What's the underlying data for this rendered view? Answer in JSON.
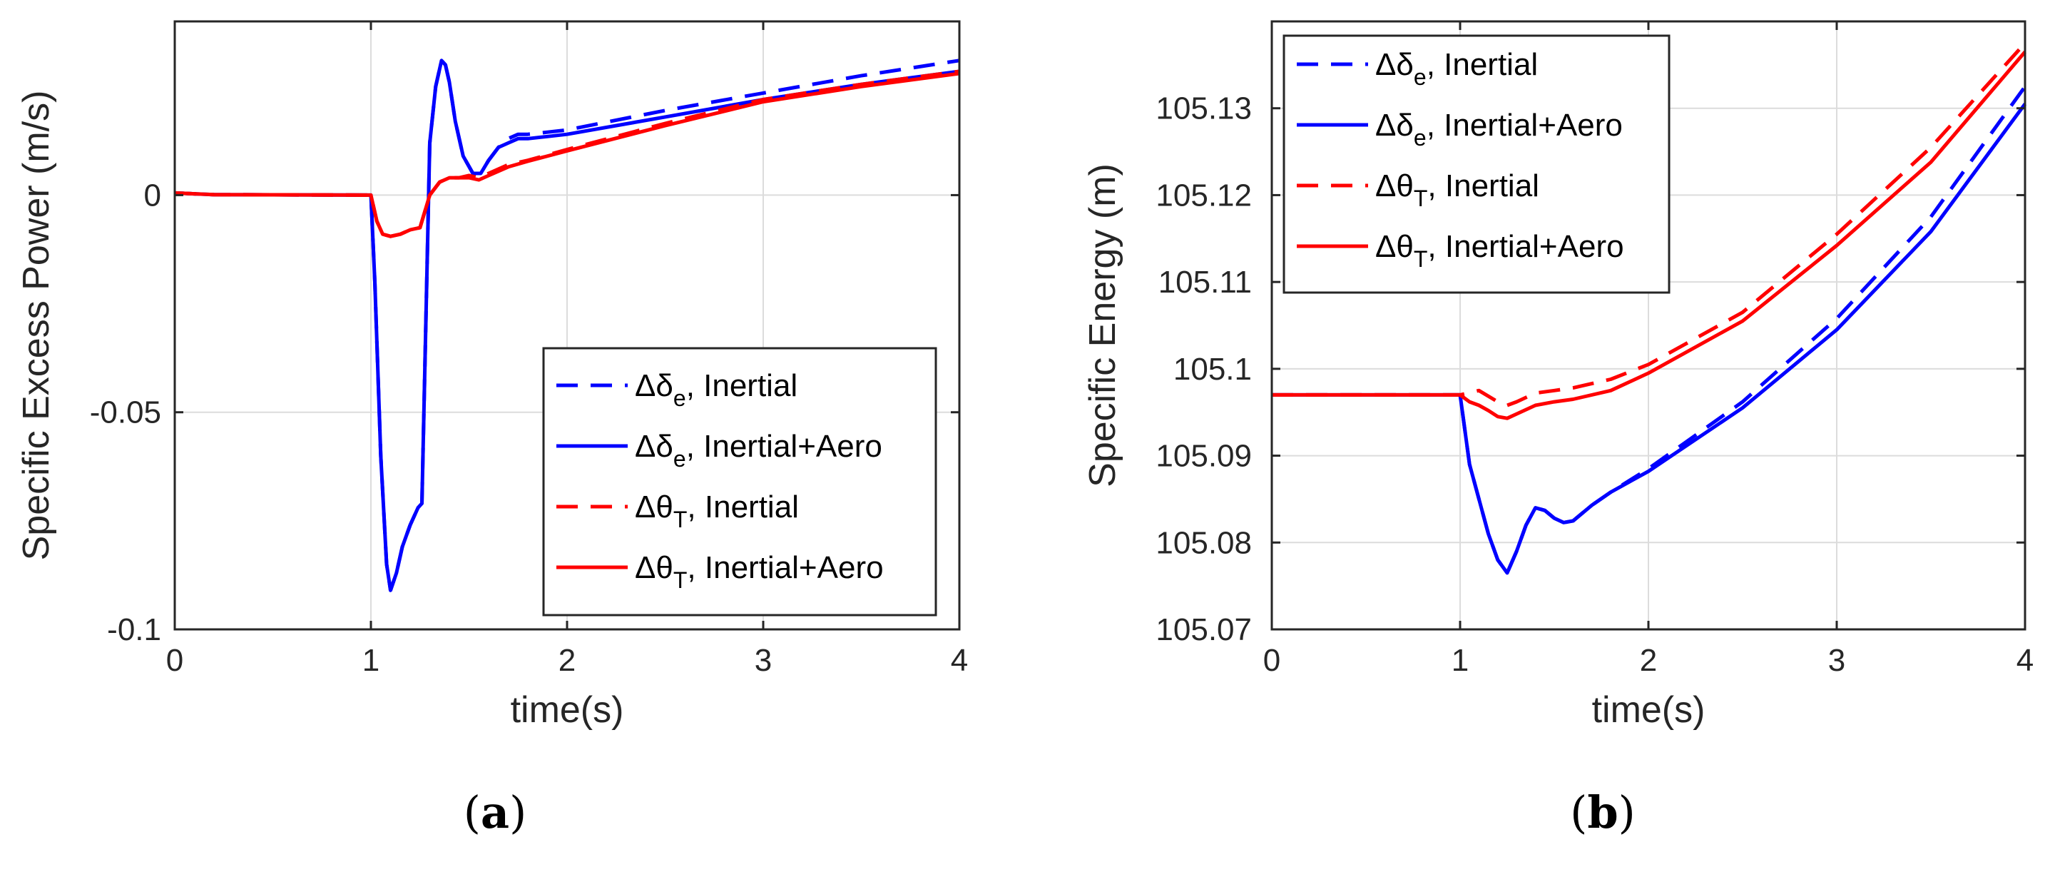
{
  "colors": {
    "blue": "#0000ff",
    "red": "#ff0000",
    "axis": "#262626",
    "grid": "#dcdcdc"
  },
  "captions": {
    "a": "a",
    "b": "b"
  },
  "chart_data": [
    {
      "type": "line",
      "id": "a",
      "title": "",
      "xlabel": "time(s)",
      "ylabel": "Specific Excess Power (m/s)",
      "xlim": [
        0,
        4
      ],
      "ylim": [
        -0.1,
        0.04
      ],
      "xticks": [
        0,
        1,
        2,
        3,
        4
      ],
      "xtick_labels": [
        "0",
        "1",
        "2",
        "3",
        "4"
      ],
      "yticks": [
        -0.1,
        -0.05,
        0
      ],
      "ytick_labels": [
        "-0.1",
        "-0.05",
        "0"
      ],
      "grid": true,
      "legend_position": "bottom-right",
      "series": [
        {
          "legend": {
            "delta": "Δδ",
            "sub": "e",
            "suffix": ", Inertial"
          },
          "color": "#0000ff",
          "dash": true,
          "x": [
            0,
            0.1,
            0.2,
            1.0,
            1.02,
            1.05,
            1.08,
            1.1,
            1.13,
            1.16,
            1.2,
            1.24,
            1.26,
            1.3,
            1.33,
            1.36,
            1.38,
            1.4,
            1.43,
            1.47,
            1.52,
            1.56,
            1.6,
            1.65,
            1.7,
            1.75,
            1.8,
            1.9,
            2.0,
            2.5,
            3.0,
            3.5,
            4.0
          ],
          "y": [
            0.0005,
            0.0003,
            0.0001,
            0.0,
            -0.02,
            -0.06,
            -0.085,
            -0.091,
            -0.087,
            -0.081,
            -0.076,
            -0.072,
            -0.071,
            0.012,
            0.025,
            0.031,
            0.03,
            0.026,
            0.017,
            0.009,
            0.005,
            0.005,
            0.008,
            0.011,
            0.013,
            0.014,
            0.014,
            0.0145,
            0.015,
            0.0195,
            0.0235,
            0.0275,
            0.031
          ]
        },
        {
          "legend": {
            "delta": "Δδ",
            "sub": "e",
            "suffix": ", Inertial+Aero"
          },
          "color": "#0000ff",
          "dash": false,
          "x": [
            0,
            0.1,
            0.2,
            1.0,
            1.02,
            1.05,
            1.08,
            1.1,
            1.13,
            1.16,
            1.2,
            1.24,
            1.26,
            1.3,
            1.33,
            1.36,
            1.38,
            1.4,
            1.43,
            1.47,
            1.52,
            1.56,
            1.6,
            1.65,
            1.7,
            1.75,
            1.8,
            1.9,
            2.0,
            2.5,
            3.0,
            3.5,
            4.0
          ],
          "y": [
            0.0005,
            0.0003,
            0.0001,
            0.0,
            -0.02,
            -0.06,
            -0.085,
            -0.091,
            -0.087,
            -0.081,
            -0.076,
            -0.072,
            -0.071,
            0.012,
            0.025,
            0.031,
            0.03,
            0.026,
            0.017,
            0.009,
            0.005,
            0.005,
            0.008,
            0.011,
            0.012,
            0.013,
            0.013,
            0.0135,
            0.014,
            0.018,
            0.022,
            0.0255,
            0.0285
          ]
        },
        {
          "legend": {
            "delta": "Δθ",
            "sub": "T",
            "suffix": ", Inertial"
          },
          "color": "#ff0000",
          "dash": true,
          "x": [
            0,
            0.1,
            0.2,
            1.0,
            1.03,
            1.06,
            1.1,
            1.15,
            1.2,
            1.25,
            1.3,
            1.35,
            1.4,
            1.45,
            1.5,
            1.55,
            1.6,
            1.7,
            1.8,
            2.0,
            2.5,
            3.0,
            3.5,
            4.0
          ],
          "y": [
            0.0005,
            0.0003,
            0.0001,
            0.0,
            -0.006,
            -0.009,
            -0.0095,
            -0.009,
            -0.008,
            -0.0075,
            0.0,
            0.003,
            0.004,
            0.004,
            0.0045,
            0.004,
            0.005,
            0.007,
            0.008,
            0.0105,
            0.0165,
            0.022,
            0.0255,
            0.0285
          ]
        },
        {
          "legend": {
            "delta": "Δθ",
            "sub": "T",
            "suffix": ", Inertial+Aero"
          },
          "color": "#ff0000",
          "dash": false,
          "x": [
            0,
            0.1,
            0.2,
            1.0,
            1.03,
            1.06,
            1.1,
            1.15,
            1.2,
            1.25,
            1.3,
            1.35,
            1.4,
            1.45,
            1.5,
            1.55,
            1.6,
            1.7,
            1.8,
            2.0,
            2.5,
            3.0,
            3.5,
            4.0
          ],
          "y": [
            0.0005,
            0.0003,
            0.0001,
            0.0,
            -0.006,
            -0.009,
            -0.0095,
            -0.009,
            -0.008,
            -0.0075,
            0.0,
            0.003,
            0.004,
            0.004,
            0.004,
            0.0035,
            0.0045,
            0.0065,
            0.0078,
            0.0102,
            0.016,
            0.0215,
            0.025,
            0.028
          ]
        }
      ]
    },
    {
      "type": "line",
      "id": "b",
      "title": "",
      "xlabel": "time(s)",
      "ylabel": "Specific Energy (m)",
      "xlim": [
        0,
        4
      ],
      "ylim": [
        105.07,
        105.14
      ],
      "xticks": [
        0,
        1,
        2,
        3,
        4
      ],
      "xtick_labels": [
        "0",
        "1",
        "2",
        "3",
        "4"
      ],
      "yticks": [
        105.07,
        105.08,
        105.09,
        105.1,
        105.11,
        105.12,
        105.13
      ],
      "ytick_labels": [
        "105.07",
        "105.08",
        "105.09",
        "105.1",
        "105.11",
        "105.12",
        "105.13"
      ],
      "grid": true,
      "legend_position": "top-left",
      "series": [
        {
          "legend": {
            "delta": "Δδ",
            "sub": "e",
            "suffix": ", Inertial"
          },
          "color": "#0000ff",
          "dash": true,
          "x": [
            0,
            1.0,
            1.05,
            1.1,
            1.15,
            1.2,
            1.25,
            1.3,
            1.35,
            1.4,
            1.45,
            1.5,
            1.55,
            1.6,
            1.7,
            1.8,
            2.0,
            2.5,
            3.0,
            3.5,
            4.0
          ],
          "y": [
            105.097,
            105.097,
            105.089,
            105.085,
            105.081,
            105.078,
            105.0765,
            105.079,
            105.082,
            105.084,
            105.0837,
            105.0828,
            105.0823,
            105.0825,
            105.0843,
            105.0858,
            105.0885,
            105.0962,
            105.1058,
            105.1175,
            105.1325
          ]
        },
        {
          "legend": {
            "delta": "Δδ",
            "sub": "e",
            "suffix": ", Inertial+Aero"
          },
          "color": "#0000ff",
          "dash": false,
          "x": [
            0,
            1.0,
            1.05,
            1.1,
            1.15,
            1.2,
            1.25,
            1.3,
            1.35,
            1.4,
            1.45,
            1.5,
            1.55,
            1.6,
            1.7,
            1.8,
            2.0,
            2.5,
            3.0,
            3.5,
            4.0
          ],
          "y": [
            105.097,
            105.097,
            105.089,
            105.085,
            105.081,
            105.078,
            105.0765,
            105.079,
            105.082,
            105.084,
            105.0837,
            105.0828,
            105.0823,
            105.0825,
            105.0843,
            105.0858,
            105.0882,
            105.0955,
            105.1045,
            105.1158,
            105.1305
          ]
        },
        {
          "legend": {
            "delta": "Δθ",
            "sub": "T",
            "suffix": ", Inertial"
          },
          "color": "#ff0000",
          "dash": true,
          "x": [
            0,
            1.0,
            1.1,
            1.2,
            1.25,
            1.3,
            1.4,
            1.5,
            1.6,
            1.8,
            2.0,
            2.5,
            3.0,
            3.5,
            4.0
          ],
          "y": [
            105.097,
            105.097,
            105.0975,
            105.0962,
            105.0958,
            105.0962,
            105.0972,
            105.0975,
            105.0978,
            105.0988,
            105.1005,
            105.1065,
            105.1155,
            105.1255,
            105.1375
          ]
        },
        {
          "legend": {
            "delta": "Δθ",
            "sub": "T",
            "suffix": ", Inertial+Aero"
          },
          "color": "#ff0000",
          "dash": false,
          "x": [
            0,
            1.0,
            1.05,
            1.1,
            1.15,
            1.2,
            1.25,
            1.3,
            1.4,
            1.5,
            1.6,
            1.8,
            2.0,
            2.5,
            3.0,
            3.5,
            4.0
          ],
          "y": [
            105.097,
            105.097,
            105.0962,
            105.0958,
            105.0952,
            105.0945,
            105.0943,
            105.0948,
            105.0958,
            105.0962,
            105.0965,
            105.0975,
            105.0995,
            105.1055,
            105.1142,
            105.1238,
            105.1365
          ]
        }
      ]
    }
  ]
}
